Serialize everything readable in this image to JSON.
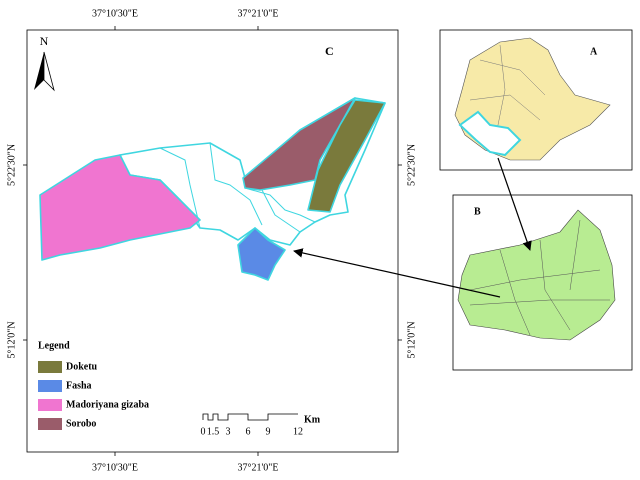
{
  "map": {
    "panel_c": {
      "label": "C",
      "north": "N",
      "top_ticks": [
        "37°10'30\"E",
        "37°21'0\"E"
      ],
      "bottom_ticks": [
        "37°10'30\"E",
        "37°21'0\"E"
      ],
      "left_ticks": [
        "5°22'30\"N",
        "5°12'0\"N"
      ],
      "right_ticks": [
        "5°22'30\"N",
        "5°12'0\"N"
      ],
      "legend": {
        "title": "Legend",
        "items": [
          {
            "name": "Doketu",
            "color": "#7a7a3c"
          },
          {
            "name": "Fasha",
            "color": "#5a8ae6"
          },
          {
            "name": "Madoriyana gizaba",
            "color": "#f075d0"
          },
          {
            "name": "Sorobo",
            "color": "#9a5c6a"
          }
        ]
      },
      "scale": {
        "ticks": [
          0,
          1.5,
          3,
          6,
          9,
          12
        ],
        "unit": "Km"
      }
    },
    "panel_a": {
      "label": "A"
    },
    "panel_b": {
      "label": "B"
    }
  }
}
